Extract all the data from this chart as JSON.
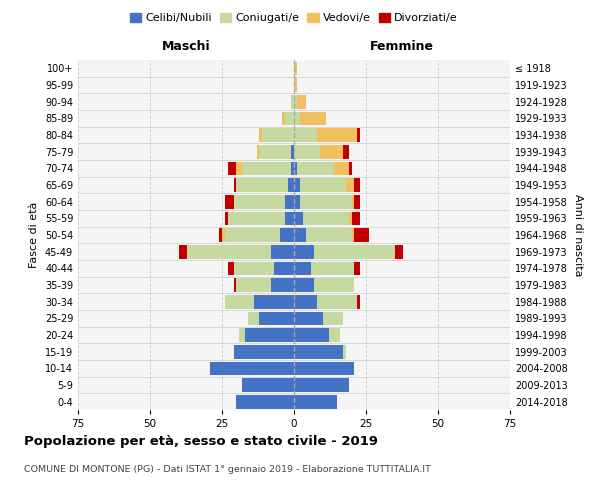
{
  "age_groups": [
    "0-4",
    "5-9",
    "10-14",
    "15-19",
    "20-24",
    "25-29",
    "30-34",
    "35-39",
    "40-44",
    "45-49",
    "50-54",
    "55-59",
    "60-64",
    "65-69",
    "70-74",
    "75-79",
    "80-84",
    "85-89",
    "90-94",
    "95-99",
    "100+"
  ],
  "birth_years": [
    "2014-2018",
    "2009-2013",
    "2004-2008",
    "1999-2003",
    "1994-1998",
    "1989-1993",
    "1984-1988",
    "1979-1983",
    "1974-1978",
    "1969-1973",
    "1964-1968",
    "1959-1963",
    "1954-1958",
    "1949-1953",
    "1944-1948",
    "1939-1943",
    "1934-1938",
    "1929-1933",
    "1924-1928",
    "1919-1923",
    "≤ 1918"
  ],
  "colors": {
    "celibi": "#4472c4",
    "coniugati": "#c5d9a0",
    "vedovi": "#f0c060",
    "divorziati": "#c00000"
  },
  "males": {
    "celibi": [
      20,
      18,
      29,
      21,
      17,
      12,
      14,
      8,
      7,
      8,
      5,
      3,
      3,
      2,
      1,
      1,
      0,
      0,
      0,
      0,
      0
    ],
    "coniugati": [
      0,
      0,
      0,
      0,
      2,
      4,
      10,
      12,
      14,
      29,
      19,
      20,
      18,
      18,
      17,
      11,
      11,
      3,
      1,
      0,
      0
    ],
    "vedovi": [
      0,
      0,
      0,
      0,
      0,
      0,
      0,
      0,
      0,
      0,
      1,
      0,
      0,
      0,
      2,
      1,
      1,
      1,
      0,
      0,
      0
    ],
    "divorziati": [
      0,
      0,
      0,
      0,
      0,
      0,
      0,
      1,
      2,
      3,
      1,
      1,
      3,
      1,
      3,
      0,
      0,
      0,
      0,
      0,
      0
    ]
  },
  "females": {
    "nubili": [
      15,
      19,
      21,
      17,
      12,
      10,
      8,
      7,
      6,
      7,
      4,
      3,
      2,
      2,
      1,
      0,
      0,
      0,
      0,
      0,
      0
    ],
    "coniugate": [
      0,
      0,
      0,
      1,
      4,
      7,
      14,
      14,
      15,
      28,
      16,
      16,
      18,
      16,
      13,
      9,
      8,
      2,
      1,
      0,
      0
    ],
    "vedove": [
      0,
      0,
      0,
      0,
      0,
      0,
      0,
      0,
      0,
      0,
      1,
      1,
      1,
      3,
      5,
      8,
      14,
      9,
      3,
      1,
      1
    ],
    "divorziate": [
      0,
      0,
      0,
      0,
      0,
      0,
      1,
      0,
      2,
      3,
      5,
      3,
      2,
      2,
      1,
      2,
      1,
      0,
      0,
      0,
      0
    ]
  },
  "xlim": 75,
  "title": "Popolazione per età, sesso e stato civile - 2019",
  "subtitle": "COMUNE DI MONTONE (PG) - Dati ISTAT 1° gennaio 2019 - Elaborazione TUTTITALIA.IT",
  "ylabel_left": "Fasce di età",
  "ylabel_right": "Anni di nascita",
  "legend_labels": [
    "Celibi/Nubili",
    "Coniugati/e",
    "Vedovi/e",
    "Divorziati/e"
  ],
  "maschi_label": "Maschi",
  "femmine_label": "Femmine",
  "bg_color": "#f5f5f5"
}
